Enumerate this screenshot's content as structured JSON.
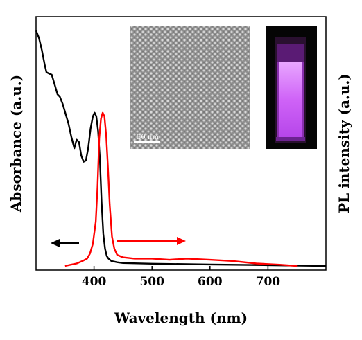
{
  "chart_data": {
    "type": "line",
    "xlabel": "Wavelength (nm)",
    "ylabel_left": "Absorbance (a.u.)",
    "ylabel_right": "PL intensity (a.u.)",
    "xlim": [
      300,
      800
    ],
    "ylim": [
      0,
      1
    ],
    "x_ticks": [
      400,
      500,
      600,
      700
    ],
    "grid": false,
    "series": [
      {
        "color": "#000000",
        "axis": "left",
        "points": [
          [
            300,
            0.96
          ],
          [
            305,
            0.93
          ],
          [
            310,
            0.88
          ],
          [
            315,
            0.82
          ],
          [
            318,
            0.79
          ],
          [
            322,
            0.785
          ],
          [
            327,
            0.78
          ],
          [
            332,
            0.74
          ],
          [
            337,
            0.7
          ],
          [
            341,
            0.69
          ],
          [
            346,
            0.66
          ],
          [
            351,
            0.62
          ],
          [
            356,
            0.58
          ],
          [
            361,
            0.525
          ],
          [
            366,
            0.48
          ],
          [
            370,
            0.515
          ],
          [
            374,
            0.505
          ],
          [
            378,
            0.45
          ],
          [
            382,
            0.425
          ],
          [
            386,
            0.43
          ],
          [
            390,
            0.48
          ],
          [
            394,
            0.56
          ],
          [
            398,
            0.61
          ],
          [
            401,
            0.625
          ],
          [
            404,
            0.61
          ],
          [
            407,
            0.55
          ],
          [
            410,
            0.44
          ],
          [
            413,
            0.26
          ],
          [
            416,
            0.13
          ],
          [
            419,
            0.07
          ],
          [
            422,
            0.04
          ],
          [
            425,
            0.03
          ],
          [
            430,
            0.02
          ],
          [
            440,
            0.015
          ],
          [
            450,
            0.012
          ],
          [
            500,
            0.009
          ],
          [
            600,
            0.006
          ],
          [
            700,
            0.003
          ],
          [
            800,
            0.0
          ]
        ]
      },
      {
        "color": "#ff0000",
        "axis": "right",
        "points": [
          [
            350,
            0.0
          ],
          [
            360,
            0.005
          ],
          [
            370,
            0.01
          ],
          [
            380,
            0.02
          ],
          [
            388,
            0.03
          ],
          [
            393,
            0.05
          ],
          [
            398,
            0.09
          ],
          [
            403,
            0.18
          ],
          [
            406,
            0.32
          ],
          [
            409,
            0.52
          ],
          [
            412,
            0.6
          ],
          [
            415,
            0.625
          ],
          [
            418,
            0.61
          ],
          [
            421,
            0.53
          ],
          [
            424,
            0.4
          ],
          [
            427,
            0.25
          ],
          [
            431,
            0.12
          ],
          [
            435,
            0.07
          ],
          [
            440,
            0.045
          ],
          [
            450,
            0.035
          ],
          [
            470,
            0.03
          ],
          [
            500,
            0.03
          ],
          [
            530,
            0.025
          ],
          [
            560,
            0.03
          ],
          [
            600,
            0.025
          ],
          [
            640,
            0.02
          ],
          [
            680,
            0.01
          ],
          [
            720,
            0.005
          ],
          [
            750,
            0.0
          ]
        ]
      }
    ],
    "annotations": [
      {
        "type": "arrow",
        "color": "#000000",
        "direction": "left",
        "meaning": "left axis"
      },
      {
        "type": "arrow",
        "color": "#ff0000",
        "direction": "right",
        "meaning": "right axis"
      }
    ]
  },
  "insets": {
    "tem": {
      "scale_bar_label": "50 nm",
      "background": "#9a9a9a"
    },
    "cuvette": {
      "background": "#050505",
      "glow_color": "#d060ff"
    }
  }
}
